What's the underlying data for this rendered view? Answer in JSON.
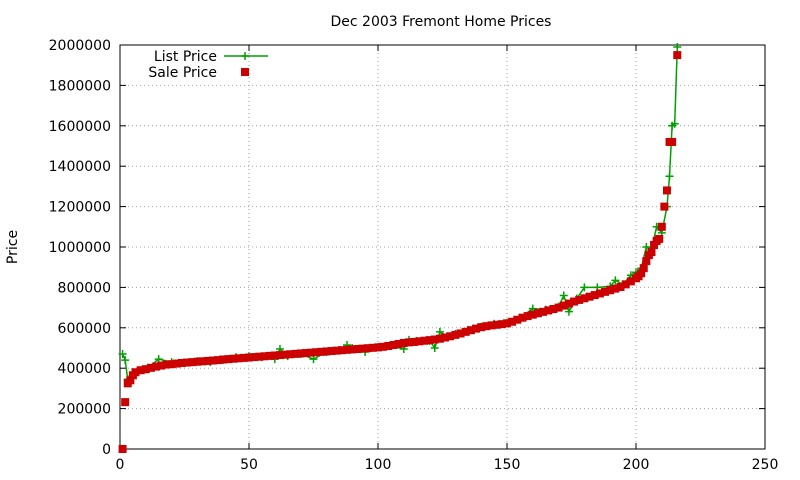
{
  "chart_data": {
    "type": "line",
    "title": "Dec 2003 Fremont Home Prices",
    "xlabel": "",
    "ylabel": "Price",
    "xlim": [
      0,
      250
    ],
    "ylim": [
      0,
      2000000
    ],
    "xticks": [
      0,
      50,
      100,
      150,
      200,
      250
    ],
    "yticks": [
      0,
      200000,
      400000,
      600000,
      800000,
      1000000,
      1200000,
      1400000,
      1600000,
      1800000,
      2000000
    ],
    "grid": true,
    "legend_position": "top-left",
    "series": [
      {
        "name": "List Price",
        "style": "line-plus",
        "color": "#00a000",
        "points": [
          [
            1,
            470000
          ],
          [
            2,
            440000
          ],
          [
            3,
            345000
          ],
          [
            5,
            375000
          ],
          [
            10,
            395000
          ],
          [
            15,
            445000
          ],
          [
            20,
            430000
          ],
          [
            25,
            425000
          ],
          [
            30,
            435000
          ],
          [
            35,
            430000
          ],
          [
            40,
            440000
          ],
          [
            45,
            455000
          ],
          [
            50,
            460000
          ],
          [
            55,
            455000
          ],
          [
            60,
            445000
          ],
          [
            62,
            495000
          ],
          [
            65,
            460000
          ],
          [
            70,
            470000
          ],
          [
            75,
            445000
          ],
          [
            80,
            480000
          ],
          [
            85,
            490000
          ],
          [
            88,
            515000
          ],
          [
            90,
            500000
          ],
          [
            95,
            480000
          ],
          [
            100,
            505000
          ],
          [
            105,
            510000
          ],
          [
            110,
            495000
          ],
          [
            112,
            540000
          ],
          [
            115,
            535000
          ],
          [
            120,
            535000
          ],
          [
            122,
            500000
          ],
          [
            124,
            580000
          ],
          [
            127,
            555000
          ],
          [
            130,
            570000
          ],
          [
            135,
            590000
          ],
          [
            140,
            605000
          ],
          [
            145,
            620000
          ],
          [
            150,
            625000
          ],
          [
            155,
            650000
          ],
          [
            160,
            695000
          ],
          [
            165,
            690000
          ],
          [
            170,
            705000
          ],
          [
            172,
            760000
          ],
          [
            174,
            680000
          ],
          [
            177,
            745000
          ],
          [
            180,
            800000
          ],
          [
            185,
            800000
          ],
          [
            190,
            805000
          ],
          [
            192,
            835000
          ],
          [
            195,
            815000
          ],
          [
            198,
            860000
          ],
          [
            200,
            875000
          ],
          [
            202,
            895000
          ],
          [
            204,
            1000000
          ],
          [
            206,
            990000
          ],
          [
            208,
            1100000
          ],
          [
            210,
            1070000
          ],
          [
            212,
            1200000
          ],
          [
            213,
            1350000
          ],
          [
            214,
            1600000
          ],
          [
            215,
            1610000
          ],
          [
            216,
            1990000
          ]
        ]
      },
      {
        "name": "Sale Price",
        "style": "square",
        "color": "#cc0000",
        "points": [
          [
            1,
            0
          ],
          [
            2,
            232000
          ],
          [
            3,
            325000
          ],
          [
            4,
            340000
          ],
          [
            5,
            365000
          ],
          [
            6,
            380000
          ],
          [
            8,
            390000
          ],
          [
            10,
            395000
          ],
          [
            12,
            402000
          ],
          [
            14,
            408000
          ],
          [
            16,
            413000
          ],
          [
            18,
            418000
          ],
          [
            20,
            420000
          ],
          [
            22,
            423000
          ],
          [
            24,
            426000
          ],
          [
            26,
            428000
          ],
          [
            28,
            430000
          ],
          [
            30,
            432000
          ],
          [
            32,
            434000
          ],
          [
            34,
            436000
          ],
          [
            36,
            438000
          ],
          [
            38,
            440000
          ],
          [
            40,
            443000
          ],
          [
            42,
            445000
          ],
          [
            44,
            447000
          ],
          [
            46,
            449000
          ],
          [
            48,
            451000
          ],
          [
            50,
            453000
          ],
          [
            52,
            455000
          ],
          [
            54,
            457000
          ],
          [
            56,
            459000
          ],
          [
            58,
            461000
          ],
          [
            60,
            463000
          ],
          [
            62,
            465000
          ],
          [
            64,
            467000
          ],
          [
            66,
            469000
          ],
          [
            68,
            471000
          ],
          [
            70,
            473000
          ],
          [
            72,
            475000
          ],
          [
            74,
            477000
          ],
          [
            76,
            479000
          ],
          [
            78,
            481000
          ],
          [
            80,
            483000
          ],
          [
            82,
            485000
          ],
          [
            84,
            487000
          ],
          [
            86,
            489000
          ],
          [
            88,
            491000
          ],
          [
            90,
            493000
          ],
          [
            92,
            495000
          ],
          [
            94,
            497000
          ],
          [
            96,
            499000
          ],
          [
            98,
            501000
          ],
          [
            100,
            503000
          ],
          [
            102,
            506000
          ],
          [
            104,
            510000
          ],
          [
            106,
            515000
          ],
          [
            108,
            520000
          ],
          [
            110,
            525000
          ],
          [
            112,
            528000
          ],
          [
            114,
            530000
          ],
          [
            116,
            533000
          ],
          [
            118,
            536000
          ],
          [
            120,
            539000
          ],
          [
            122,
            542000
          ],
          [
            124,
            546000
          ],
          [
            126,
            552000
          ],
          [
            128,
            558000
          ],
          [
            130,
            565000
          ],
          [
            132,
            572000
          ],
          [
            134,
            580000
          ],
          [
            136,
            588000
          ],
          [
            138,
            596000
          ],
          [
            140,
            603000
          ],
          [
            142,
            608000
          ],
          [
            144,
            612000
          ],
          [
            146,
            615000
          ],
          [
            148,
            618000
          ],
          [
            150,
            622000
          ],
          [
            152,
            630000
          ],
          [
            154,
            640000
          ],
          [
            156,
            650000
          ],
          [
            158,
            658000
          ],
          [
            160,
            665000
          ],
          [
            162,
            672000
          ],
          [
            164,
            679000
          ],
          [
            166,
            686000
          ],
          [
            168,
            693000
          ],
          [
            170,
            700000
          ],
          [
            172,
            710000
          ],
          [
            174,
            720000
          ],
          [
            176,
            730000
          ],
          [
            178,
            738000
          ],
          [
            180,
            746000
          ],
          [
            182,
            754000
          ],
          [
            184,
            762000
          ],
          [
            186,
            770000
          ],
          [
            188,
            778000
          ],
          [
            190,
            786000
          ],
          [
            192,
            794000
          ],
          [
            194,
            802000
          ],
          [
            196,
            815000
          ],
          [
            198,
            830000
          ],
          [
            200,
            845000
          ],
          [
            201,
            855000
          ],
          [
            202,
            870000
          ],
          [
            203,
            895000
          ],
          [
            204,
            930000
          ],
          [
            205,
            960000
          ],
          [
            206,
            975000
          ],
          [
            207,
            1010000
          ],
          [
            208,
            1030000
          ],
          [
            209,
            1040000
          ],
          [
            210,
            1100000
          ],
          [
            211,
            1200000
          ],
          [
            212,
            1280000
          ],
          [
            213,
            1520000
          ],
          [
            214,
            1520000
          ],
          [
            216,
            1950000
          ]
        ]
      }
    ]
  }
}
